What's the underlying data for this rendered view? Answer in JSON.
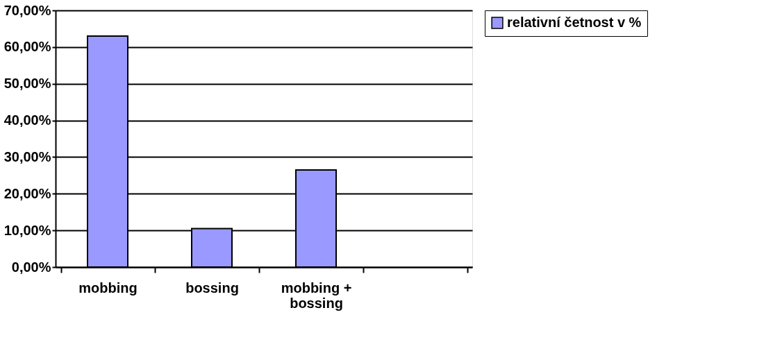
{
  "chart_data": {
    "type": "bar",
    "categories": [
      "mobbing",
      "bossing",
      "mobbing + bossing",
      null
    ],
    "series": [
      {
        "name": "relativní četnost v %",
        "color": "#9999ff",
        "values": [
          63,
          10.5,
          26.5,
          null
        ]
      }
    ],
    "ylim": [
      0,
      70
    ],
    "yticks": [
      {
        "value": 0,
        "label": "0,00%"
      },
      {
        "value": 10,
        "label": "10,00%"
      },
      {
        "value": 20,
        "label": "20,00%"
      },
      {
        "value": 30,
        "label": "30,00%"
      },
      {
        "value": 40,
        "label": "40,00%"
      },
      {
        "value": 50,
        "label": "50,00%"
      },
      {
        "value": 60,
        "label": "60,00%"
      },
      {
        "value": 70,
        "label": "70,00%"
      }
    ],
    "grid": "y",
    "legend": "right"
  }
}
